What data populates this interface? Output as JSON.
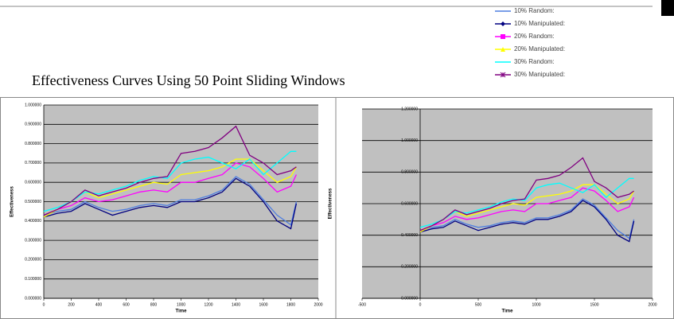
{
  "heading": "Effectiveness Curves Using 50 Point Sliding Windows",
  "chart_data": [
    {
      "type": "line",
      "xlabel": "Time",
      "ylabel": "Effectiveness",
      "xlim": [
        0,
        2000
      ],
      "xticks": [
        0,
        200,
        400,
        600,
        800,
        1000,
        1200,
        1400,
        1600,
        1800,
        2000
      ],
      "ylim": [
        0,
        1
      ],
      "yticks": [
        {
          "value": 0,
          "label": "0.000000"
        },
        {
          "value": 0.1,
          "label": "0.100000"
        },
        {
          "value": 0.2,
          "label": "0.200000"
        },
        {
          "value": 0.3,
          "label": "0.300000"
        },
        {
          "value": 0.4,
          "label": "0.400000"
        },
        {
          "value": 0.5,
          "label": "0.500000"
        },
        {
          "value": 0.6,
          "label": "0.600000"
        },
        {
          "value": 0.7,
          "label": "0.700000"
        },
        {
          "value": 0.8,
          "label": "0.800000"
        },
        {
          "value": 0.9,
          "label": "0.900000"
        },
        {
          "value": 1,
          "label": "1.000000"
        }
      ],
      "grid": true,
      "x": [
        0,
        100,
        200,
        300,
        400,
        500,
        600,
        700,
        800,
        900,
        1000,
        1100,
        1200,
        1300,
        1400,
        1500,
        1600,
        1700,
        1800,
        1840
      ],
      "series": [
        {
          "name": "10% Random:",
          "color": "#4f7fe0",
          "values": [
            0.43,
            0.45,
            0.46,
            0.5,
            0.47,
            0.45,
            0.46,
            0.48,
            0.49,
            0.48,
            0.51,
            0.51,
            0.53,
            0.56,
            0.63,
            0.59,
            0.51,
            0.43,
            0.38,
            0.5
          ]
        },
        {
          "name": "10% Manipulated:",
          "color": "#000080",
          "values": [
            0.42,
            0.44,
            0.45,
            0.49,
            0.46,
            0.43,
            0.45,
            0.47,
            0.48,
            0.47,
            0.5,
            0.5,
            0.52,
            0.55,
            0.62,
            0.58,
            0.5,
            0.4,
            0.36,
            0.49
          ]
        },
        {
          "name": "20% Random:",
          "color": "#ff00ff",
          "values": [
            0.43,
            0.46,
            0.48,
            0.52,
            0.5,
            0.51,
            0.53,
            0.55,
            0.56,
            0.55,
            0.6,
            0.6,
            0.62,
            0.64,
            0.7,
            0.68,
            0.62,
            0.55,
            0.58,
            0.64
          ]
        },
        {
          "name": "20% Manipulated:",
          "color": "#ffff00",
          "values": [
            0.42,
            0.46,
            0.5,
            0.55,
            0.52,
            0.54,
            0.56,
            0.58,
            0.6,
            0.59,
            0.64,
            0.65,
            0.66,
            0.68,
            0.72,
            0.72,
            0.66,
            0.6,
            0.63,
            0.68
          ]
        },
        {
          "name": "30% Random:",
          "color": "#00ffff",
          "values": [
            0.45,
            0.47,
            0.5,
            0.55,
            0.54,
            0.56,
            0.58,
            0.61,
            0.63,
            0.62,
            0.7,
            0.72,
            0.73,
            0.7,
            0.67,
            0.72,
            0.64,
            0.7,
            0.76,
            0.76
          ]
        },
        {
          "name": "30% Manipulated:",
          "color": "#800080",
          "values": [
            0.43,
            0.46,
            0.5,
            0.56,
            0.53,
            0.55,
            0.57,
            0.6,
            0.62,
            0.63,
            0.75,
            0.76,
            0.78,
            0.83,
            0.89,
            0.74,
            0.7,
            0.64,
            0.66,
            0.68
          ]
        }
      ]
    },
    {
      "type": "line",
      "xlabel": "Time",
      "ylabel": "Effectiveness",
      "xlim": [
        -500,
        2000
      ],
      "xticks": [
        -500,
        0,
        500,
        1000,
        1500,
        2000
      ],
      "ylim": [
        0,
        1.2
      ],
      "yticks": [
        {
          "value": 0,
          "label": "0.000000"
        },
        {
          "value": 0.2,
          "label": "0.200000"
        },
        {
          "value": 0.4,
          "label": "0.400000"
        },
        {
          "value": 0.6,
          "label": "0.600000"
        },
        {
          "value": 0.8,
          "label": "0.800000"
        },
        {
          "value": 1,
          "label": "1.000000"
        },
        {
          "value": 1.2,
          "label": "1.200000"
        }
      ],
      "grid": true,
      "x": [
        0,
        100,
        200,
        300,
        400,
        500,
        600,
        700,
        800,
        900,
        1000,
        1100,
        1200,
        1300,
        1400,
        1500,
        1600,
        1700,
        1800,
        1840
      ],
      "series": [
        {
          "name": "10% Random:",
          "color": "#4f7fe0",
          "values": [
            0.43,
            0.45,
            0.46,
            0.5,
            0.47,
            0.45,
            0.46,
            0.48,
            0.49,
            0.48,
            0.51,
            0.51,
            0.53,
            0.56,
            0.63,
            0.59,
            0.51,
            0.43,
            0.38,
            0.5
          ]
        },
        {
          "name": "10% Manipulated:",
          "color": "#000080",
          "values": [
            0.42,
            0.44,
            0.45,
            0.49,
            0.46,
            0.43,
            0.45,
            0.47,
            0.48,
            0.47,
            0.5,
            0.5,
            0.52,
            0.55,
            0.62,
            0.58,
            0.5,
            0.4,
            0.36,
            0.49
          ]
        },
        {
          "name": "20% Random:",
          "color": "#ff00ff",
          "values": [
            0.43,
            0.46,
            0.48,
            0.52,
            0.5,
            0.51,
            0.53,
            0.55,
            0.56,
            0.55,
            0.6,
            0.6,
            0.62,
            0.64,
            0.7,
            0.68,
            0.62,
            0.55,
            0.58,
            0.64
          ]
        },
        {
          "name": "20% Manipulated:",
          "color": "#ffff00",
          "values": [
            0.42,
            0.46,
            0.5,
            0.55,
            0.52,
            0.54,
            0.56,
            0.58,
            0.6,
            0.59,
            0.64,
            0.65,
            0.66,
            0.68,
            0.72,
            0.72,
            0.66,
            0.6,
            0.63,
            0.68
          ]
        },
        {
          "name": "30% Random:",
          "color": "#00ffff",
          "values": [
            0.45,
            0.47,
            0.5,
            0.55,
            0.54,
            0.56,
            0.58,
            0.61,
            0.63,
            0.62,
            0.7,
            0.72,
            0.73,
            0.7,
            0.67,
            0.72,
            0.64,
            0.7,
            0.76,
            0.76
          ]
        },
        {
          "name": "30% Manipulated:",
          "color": "#800080",
          "values": [
            0.43,
            0.46,
            0.5,
            0.56,
            0.53,
            0.55,
            0.57,
            0.6,
            0.62,
            0.63,
            0.75,
            0.76,
            0.78,
            0.83,
            0.89,
            0.74,
            0.7,
            0.64,
            0.66,
            0.68
          ]
        }
      ]
    }
  ]
}
